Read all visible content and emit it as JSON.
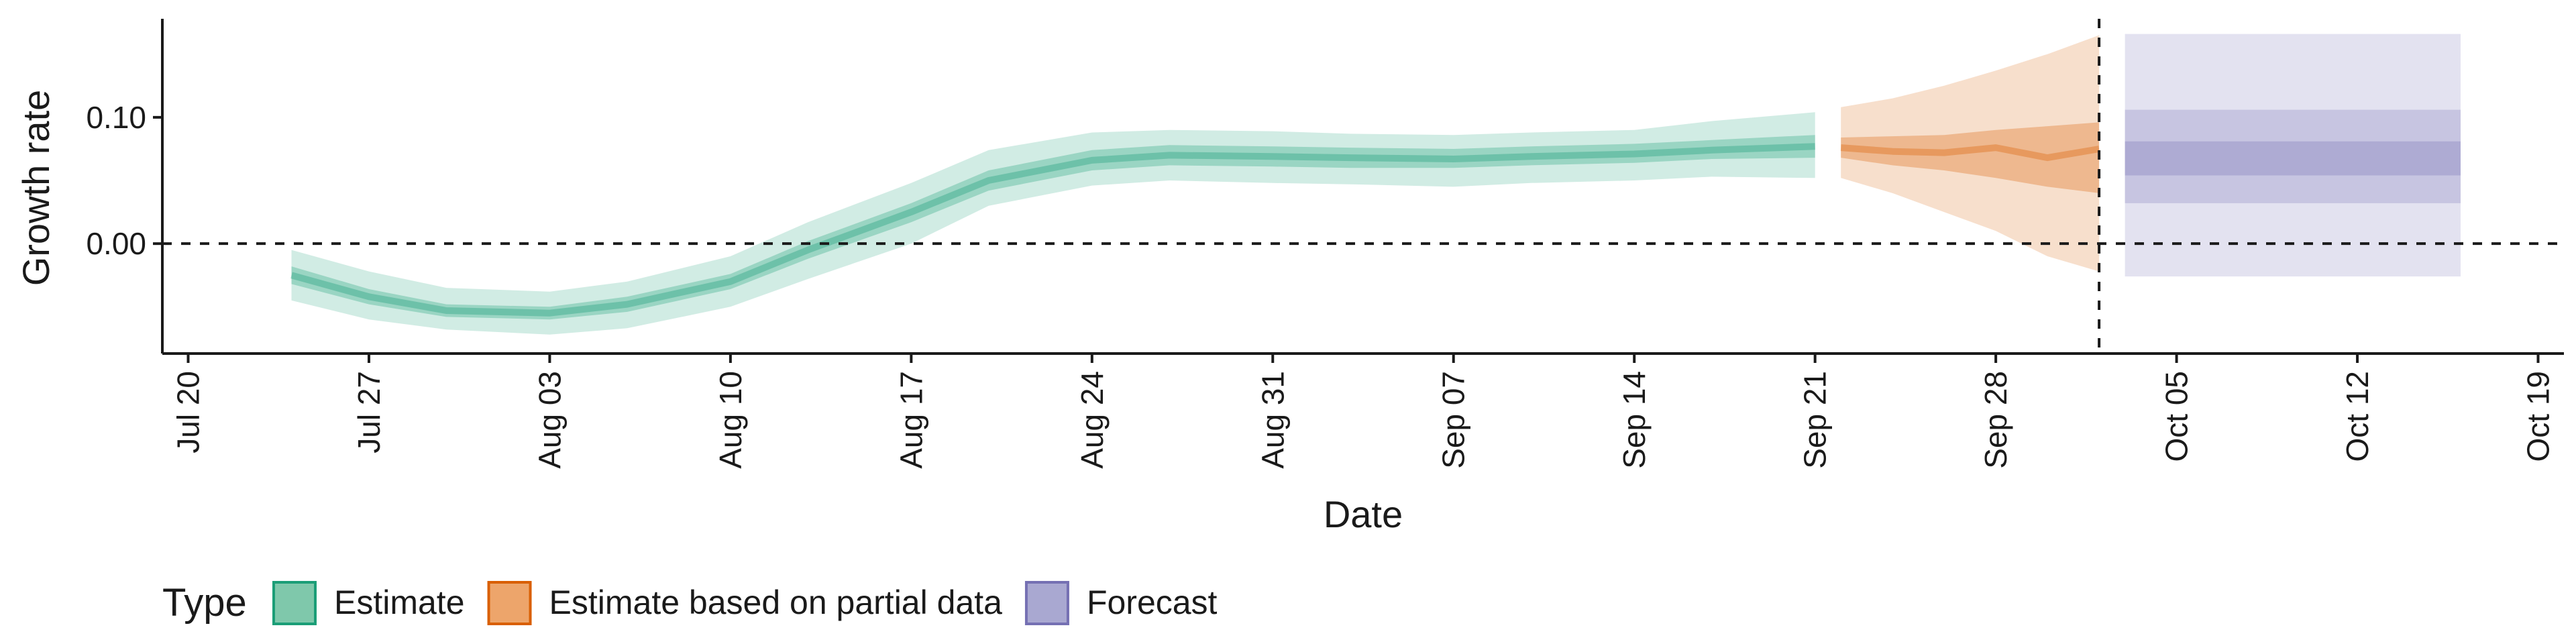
{
  "chart_data": {
    "type": "area",
    "xlabel": "Date",
    "ylabel": "Growth rate",
    "x_range": [
      "2020-07-19",
      "2020-10-20"
    ],
    "ylim": [
      -0.087,
      0.178
    ],
    "y_ticks": [
      {
        "value": 0.0,
        "label": "0.00"
      },
      {
        "value": 0.1,
        "label": "0.10"
      }
    ],
    "x_ticks": [
      {
        "date": "2020-07-20",
        "label": "Jul 20"
      },
      {
        "date": "2020-07-27",
        "label": "Jul 27"
      },
      {
        "date": "2020-08-03",
        "label": "Aug 03"
      },
      {
        "date": "2020-08-10",
        "label": "Aug 10"
      },
      {
        "date": "2020-08-17",
        "label": "Aug 17"
      },
      {
        "date": "2020-08-24",
        "label": "Aug 24"
      },
      {
        "date": "2020-08-31",
        "label": "Aug 31"
      },
      {
        "date": "2020-09-07",
        "label": "Sep 07"
      },
      {
        "date": "2020-09-14",
        "label": "Sep 14"
      },
      {
        "date": "2020-09-21",
        "label": "Sep 21"
      },
      {
        "date": "2020-09-28",
        "label": "Sep 28"
      },
      {
        "date": "2020-10-05",
        "label": "Oct 05"
      },
      {
        "date": "2020-10-12",
        "label": "Oct 12"
      },
      {
        "date": "2020-10-19",
        "label": "Oct 19"
      }
    ],
    "reference_lines": {
      "horizontal_y": 0.0,
      "vertical_date": "2020-10-02",
      "style": "dashed"
    },
    "grid": false,
    "legend": {
      "title": "Type",
      "position": "bottom-left",
      "entries": [
        {
          "label": "Estimate",
          "fill": "#7fc8ab",
          "stroke": "#1b9e77"
        },
        {
          "label": "Estimate based on partial data",
          "fill": "#eda56b",
          "stroke": "#d95f02"
        },
        {
          "label": "Forecast",
          "fill": "#a9a8d1",
          "stroke": "#7570b3"
        }
      ]
    },
    "series": [
      {
        "type_label": "Estimate",
        "color": "#1b9e77",
        "x": [
          "2020-07-24",
          "2020-07-27",
          "2020-07-30",
          "2020-08-03",
          "2020-08-06",
          "2020-08-10",
          "2020-08-13",
          "2020-08-17",
          "2020-08-20",
          "2020-08-24",
          "2020-08-27",
          "2020-08-31",
          "2020-09-03",
          "2020-09-07",
          "2020-09-10",
          "2020-09-14",
          "2020-09-17",
          "2020-09-21"
        ],
        "median": [
          -0.025,
          -0.042,
          -0.053,
          -0.055,
          -0.048,
          -0.03,
          -0.005,
          0.025,
          0.05,
          0.066,
          0.07,
          0.069,
          0.068,
          0.067,
          0.069,
          0.071,
          0.074,
          0.077
        ],
        "lower_50": [
          -0.032,
          -0.048,
          -0.058,
          -0.06,
          -0.054,
          -0.036,
          -0.012,
          0.017,
          0.042,
          0.058,
          0.062,
          0.061,
          0.06,
          0.06,
          0.062,
          0.064,
          0.067,
          0.068
        ],
        "upper_50": [
          -0.018,
          -0.036,
          -0.048,
          -0.05,
          -0.042,
          -0.024,
          0.002,
          0.032,
          0.058,
          0.074,
          0.078,
          0.077,
          0.076,
          0.075,
          0.077,
          0.079,
          0.082,
          0.086
        ],
        "lower_90": [
          -0.045,
          -0.06,
          -0.068,
          -0.072,
          -0.067,
          -0.05,
          -0.028,
          0.0,
          0.03,
          0.046,
          0.05,
          0.048,
          0.047,
          0.045,
          0.048,
          0.05,
          0.053,
          0.052
        ],
        "upper_90": [
          -0.005,
          -0.022,
          -0.035,
          -0.038,
          -0.03,
          -0.01,
          0.017,
          0.048,
          0.074,
          0.088,
          0.09,
          0.089,
          0.087,
          0.086,
          0.088,
          0.09,
          0.097,
          0.104
        ]
      },
      {
        "type_label": "Estimate based on partial data",
        "color": "#d95f02",
        "x": [
          "2020-09-22",
          "2020-09-24",
          "2020-09-26",
          "2020-09-28",
          "2020-09-30",
          "2020-10-02"
        ],
        "median": [
          0.076,
          0.073,
          0.072,
          0.076,
          0.068,
          0.075
        ],
        "lower_50": [
          0.068,
          0.062,
          0.058,
          0.052,
          0.045,
          0.04
        ],
        "upper_50": [
          0.084,
          0.085,
          0.086,
          0.09,
          0.093,
          0.096
        ],
        "lower_90": [
          0.052,
          0.04,
          0.025,
          0.01,
          -0.01,
          -0.022
        ],
        "upper_90": [
          0.108,
          0.115,
          0.125,
          0.137,
          0.15,
          0.165
        ]
      },
      {
        "type_label": "Forecast",
        "color": "#7570b3",
        "x": [
          "2020-10-03",
          "2020-10-16"
        ],
        "median": [
          0.068,
          0.068
        ],
        "lower_30": [
          0.054,
          0.054
        ],
        "upper_30": [
          0.081,
          0.081
        ],
        "lower_60": [
          0.032,
          0.032
        ],
        "upper_60": [
          0.106,
          0.106
        ],
        "lower_90": [
          -0.026,
          -0.026
        ],
        "upper_90": [
          0.166,
          0.166
        ]
      }
    ]
  }
}
